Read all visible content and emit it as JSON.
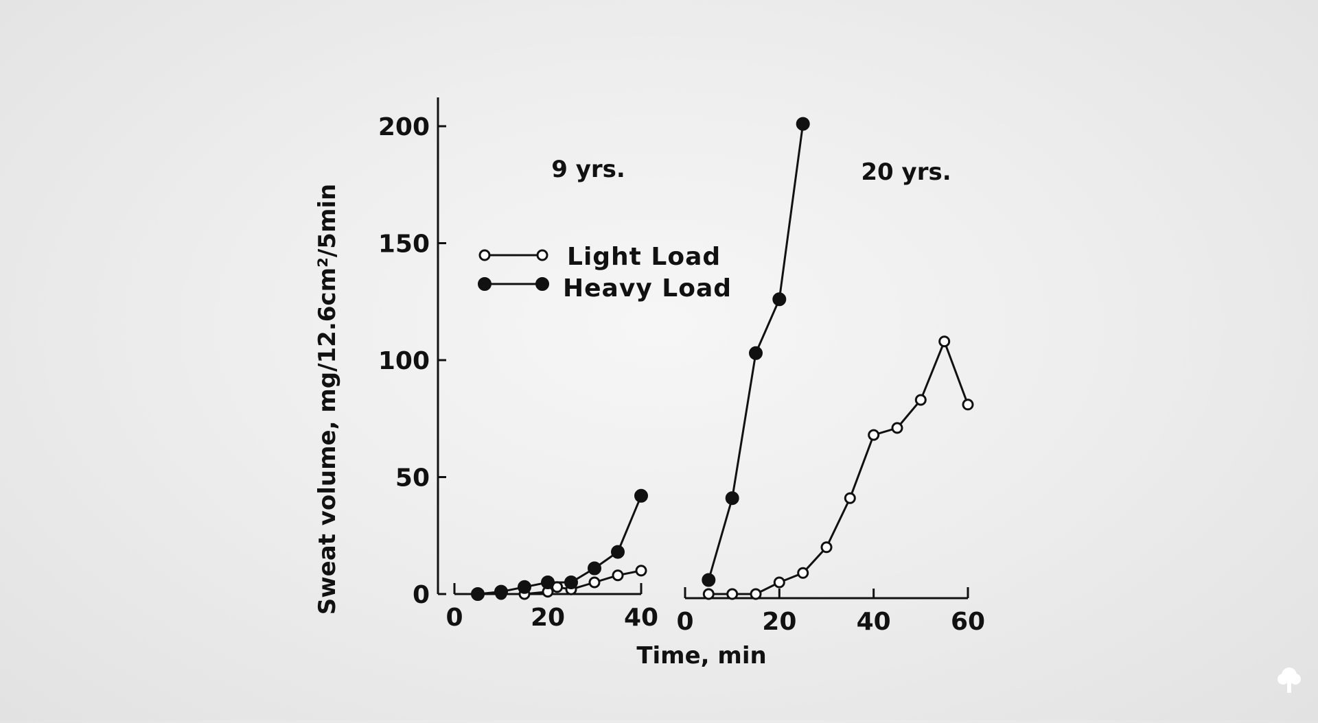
{
  "chart_data": {
    "type": "line",
    "title": "",
    "ylabel": "Sweat volume, mg/12.6cm²/5min",
    "xlabel": "Time, min",
    "ylim": [
      0,
      200
    ],
    "y_ticks": [
      "0",
      "50",
      "100",
      "150",
      "200"
    ],
    "legend": {
      "placement": "upper-left of first panel",
      "entries": [
        {
          "label": "Light Load",
          "marker": "open-circle"
        },
        {
          "label": "Heavy Load",
          "marker": "filled-circle"
        }
      ]
    },
    "panels": [
      {
        "label": "9 yrs.",
        "xlim": [
          0,
          40
        ],
        "x_ticks": [
          "0",
          "20",
          "40"
        ],
        "series": [
          {
            "name": "Light Load",
            "marker": "open",
            "x": [
              5,
              10,
              15,
              20,
              22,
              25,
              30,
              35,
              40
            ],
            "y": [
              0,
              0,
              0,
              1,
              3,
              2,
              5,
              8,
              10
            ]
          },
          {
            "name": "Heavy Load",
            "marker": "filled",
            "x": [
              5,
              10,
              15,
              20,
              25,
              30,
              35,
              40
            ],
            "y": [
              0,
              1,
              3,
              5,
              5,
              11,
              18,
              42
            ]
          }
        ]
      },
      {
        "label": "20 yrs.",
        "xlim": [
          0,
          60
        ],
        "x_ticks": [
          "0",
          "20",
          "40",
          "60"
        ],
        "series": [
          {
            "name": "Light Load",
            "marker": "open",
            "x": [
              5,
              10,
              15,
              20,
              25,
              30,
              35,
              40,
              45,
              50,
              55,
              60
            ],
            "y": [
              0,
              0,
              0,
              5,
              9,
              20,
              41,
              68,
              71,
              83,
              108,
              81
            ]
          },
          {
            "name": "Heavy Load",
            "marker": "filled",
            "x": [
              5,
              10,
              15,
              20,
              25
            ],
            "y": [
              6,
              41,
              103,
              126,
              201
            ]
          }
        ]
      }
    ]
  },
  "watermark": {
    "icon": "tree-icon"
  }
}
